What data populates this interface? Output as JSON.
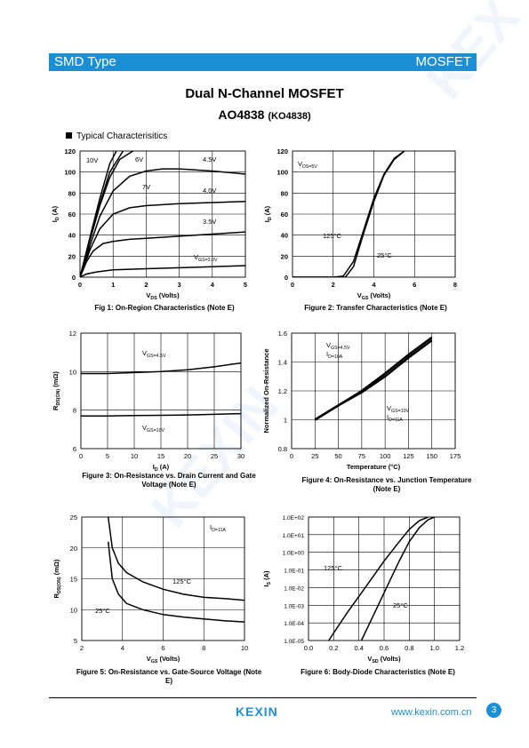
{
  "header": {
    "left": "SMD Type",
    "right": "MOSFET"
  },
  "title": "Dual N-Channel MOSFET",
  "part": "AO4838",
  "part_alt": "(KO4838)",
  "section": "Typical  Characterisitics",
  "footer": {
    "logo": "KEXIN",
    "url": "www.kexin.com.cn",
    "page": "3"
  },
  "chart_data": [
    {
      "type": "line",
      "title": "Fig 1: On-Region Characteristics (Note E)",
      "xlabel": "V_DS (Volts)",
      "ylabel": "I_D (A)",
      "xlim": [
        0,
        5
      ],
      "ylim": [
        0,
        120
      ],
      "xticks": [
        0,
        1,
        2,
        3,
        4,
        5
      ],
      "yticks": [
        0,
        20,
        40,
        60,
        80,
        100,
        120
      ],
      "series": [
        {
          "name": "10V",
          "x": [
            0,
            0.3,
            0.6,
            0.9,
            1.1
          ],
          "y": [
            0,
            38,
            75,
            108,
            120
          ]
        },
        {
          "name": "6V",
          "x": [
            0,
            0.3,
            0.6,
            0.9,
            1.3
          ],
          "y": [
            0,
            36,
            70,
            100,
            120
          ]
        },
        {
          "name": "7V",
          "x": [
            0,
            0.3,
            0.6,
            0.9,
            1.2,
            1.6
          ],
          "y": [
            0,
            35,
            68,
            95,
            112,
            120
          ]
        },
        {
          "name": "4.5V",
          "x": [
            0,
            0.3,
            0.6,
            1,
            1.5,
            2,
            2.5,
            3,
            4,
            5
          ],
          "y": [
            0,
            30,
            58,
            82,
            96,
            101,
            103,
            103,
            101,
            98
          ]
        },
        {
          "name": "4.0V",
          "x": [
            0,
            0.3,
            0.6,
            1,
            1.5,
            2,
            3,
            4,
            5
          ],
          "y": [
            0,
            26,
            46,
            60,
            66,
            68,
            70,
            71,
            72
          ]
        },
        {
          "name": "3.5V",
          "x": [
            0,
            0.2,
            0.4,
            0.7,
            1,
            1.5,
            2,
            3,
            4,
            5
          ],
          "y": [
            0,
            15,
            25,
            32,
            34,
            36,
            37,
            39,
            41,
            43
          ]
        },
        {
          "name": "V_GS=3.0V",
          "x": [
            0,
            0.2,
            0.5,
            1,
            2,
            3,
            4,
            5
          ],
          "y": [
            0,
            3,
            5,
            7,
            8,
            9,
            10,
            11
          ]
        }
      ]
    },
    {
      "type": "line",
      "title": "Figure 2: Transfer Characteristics (Note E)",
      "xlabel": "V_GS (Volts)",
      "ylabel": "I_D (A)",
      "xlim": [
        0,
        8
      ],
      "ylim": [
        0,
        120
      ],
      "xticks": [
        0,
        2,
        4,
        6,
        8
      ],
      "yticks": [
        0,
        20,
        40,
        60,
        80,
        100,
        120
      ],
      "annotations": [
        "V_DS=5V",
        "125°C",
        "25°C"
      ],
      "series": [
        {
          "name": "125°C",
          "x": [
            0,
            2,
            2.5,
            3,
            3.5,
            4,
            4.5,
            5,
            5.5
          ],
          "y": [
            0,
            0,
            1,
            15,
            45,
            75,
            98,
            113,
            120
          ]
        },
        {
          "name": "25°C",
          "x": [
            0,
            2.6,
            3,
            3.5,
            4,
            4.5,
            5,
            5.5
          ],
          "y": [
            0,
            0,
            10,
            42,
            72,
            97,
            112,
            120
          ]
        }
      ]
    },
    {
      "type": "line",
      "title": "Figure 3: On-Resistance vs. Drain Current and Gate Voltage (Note E)",
      "xlabel": "I_D (A)",
      "ylabel": "R_DS(ON) (mΩ)",
      "xlim": [
        0,
        30
      ],
      "ylim": [
        6,
        12
      ],
      "xticks": [
        0,
        5,
        10,
        15,
        20,
        25,
        30
      ],
      "yticks": [
        6,
        8,
        10,
        12
      ],
      "series": [
        {
          "name": "V_GS=4.5V",
          "x": [
            0,
            5,
            10,
            15,
            20,
            25,
            30
          ],
          "y": [
            9.9,
            9.9,
            9.95,
            10.0,
            10.1,
            10.25,
            10.45
          ]
        },
        {
          "name": "V_GS=10V",
          "x": [
            0,
            5,
            10,
            15,
            20,
            25,
            30
          ],
          "y": [
            7.7,
            7.7,
            7.72,
            7.73,
            7.75,
            7.78,
            7.82
          ]
        }
      ]
    },
    {
      "type": "line",
      "title": "Figure 4: On-Resistance vs. Junction Temperature (Note E)",
      "xlabel": "Temperature (°C)",
      "ylabel": "Normalized On-Resistance",
      "xlim": [
        0,
        175
      ],
      "ylim": [
        0.8,
        1.6
      ],
      "xticks": [
        0,
        25,
        50,
        75,
        100,
        125,
        150,
        175
      ],
      "yticks": [
        0.8,
        1,
        1.2,
        1.4,
        1.6
      ],
      "annotations": [
        "V_GS=4.5V",
        "I_D=10A",
        "V_GS=10V",
        "I_D=11A"
      ],
      "series": [
        {
          "name": "V_GS=4.5V, I_D=10A",
          "x": [
            25,
            50,
            75,
            100,
            125,
            150
          ],
          "y": [
            1.0,
            1.1,
            1.2,
            1.32,
            1.45,
            1.57
          ]
        },
        {
          "name": "V_GS=10V, I_D=11A",
          "x": [
            25,
            50,
            75,
            100,
            125,
            150
          ],
          "y": [
            1.0,
            1.1,
            1.19,
            1.3,
            1.43,
            1.55
          ]
        }
      ]
    },
    {
      "type": "line",
      "title": "Figure 5: On-Resistance vs. Gate-Source Voltage (Note E)",
      "xlabel": "V_GS (Volts)",
      "ylabel": "R_DS(ON) (mΩ)",
      "xlim": [
        2,
        10
      ],
      "ylim": [
        5,
        25
      ],
      "xticks": [
        2,
        4,
        6,
        8,
        10
      ],
      "yticks": [
        5,
        10,
        15,
        20,
        25
      ],
      "annotations": [
        "I_D=11A",
        "125°C",
        "25°C"
      ],
      "series": [
        {
          "name": "125°C",
          "x": [
            3.3,
            3.5,
            3.8,
            4.2,
            5,
            6,
            7,
            8,
            9,
            10
          ],
          "y": [
            25,
            20,
            17.5,
            16,
            14.5,
            13.3,
            12.5,
            12,
            11.8,
            11.5
          ]
        },
        {
          "name": "25°C",
          "x": [
            3.3,
            3.5,
            3.8,
            4.2,
            5,
            6,
            7,
            8,
            9,
            10
          ],
          "y": [
            21,
            15,
            12.5,
            11,
            10,
            9.2,
            8.8,
            8.5,
            8.2,
            8.0
          ]
        }
      ]
    },
    {
      "type": "line",
      "title": "Figure 6: Body-Diode Characteristics (Note E)",
      "xlabel": "V_SD (Volts)",
      "ylabel": "I_S (A)",
      "xlim": [
        0,
        1.2
      ],
      "ylim_log10": [
        -5,
        2
      ],
      "xticks": [
        "0.0",
        "0.2",
        "0.4",
        "0.6",
        "0.8",
        "1.0",
        "1.2"
      ],
      "yticks": [
        "1.0E-05",
        "1.0E-04",
        "1.0E-03",
        "1.0E-02",
        "1.0E-01",
        "1.0E+00",
        "1.0E+01",
        "1.0E+02"
      ],
      "annotations": [
        "125°C",
        "25°C"
      ],
      "series": [
        {
          "name": "125°C",
          "x": [
            0.16,
            0.3,
            0.45,
            0.6,
            0.72,
            0.8,
            0.88,
            0.95
          ],
          "y_log10": [
            -5,
            -3.5,
            -2,
            -0.5,
            0.6,
            1.3,
            1.8,
            2
          ]
        },
        {
          "name": "25°C",
          "x": [
            0.42,
            0.52,
            0.62,
            0.72,
            0.8,
            0.88,
            0.95,
            1.0
          ],
          "y_log10": [
            -5,
            -3.5,
            -2,
            -0.5,
            0.6,
            1.4,
            1.85,
            2
          ]
        }
      ]
    }
  ]
}
